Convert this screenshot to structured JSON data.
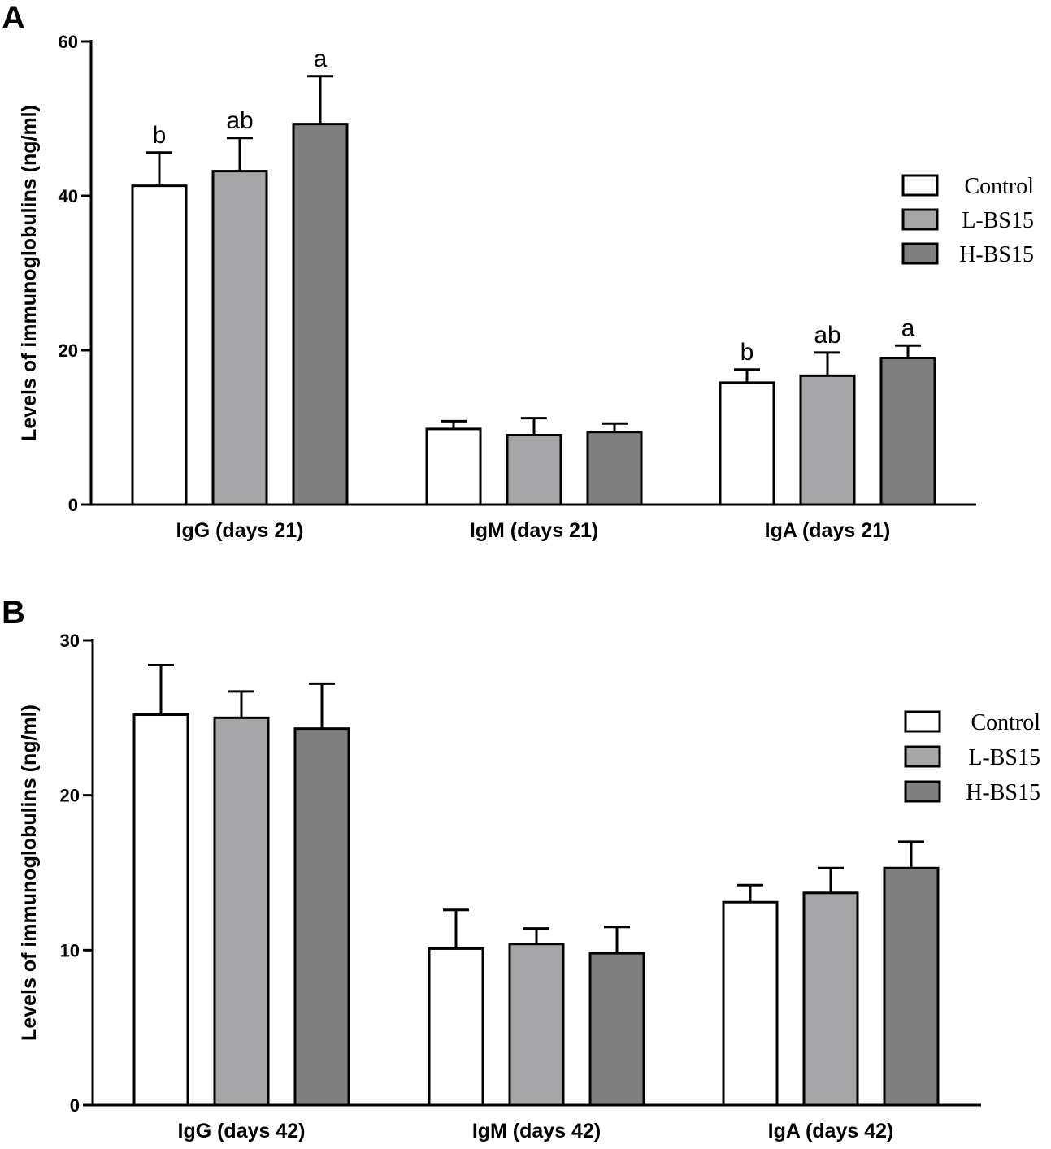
{
  "chart_data": [
    {
      "type": "bar",
      "panel": "A",
      "title": "",
      "xlabel": "",
      "ylabel": "Levels of immunoglobulins (ng/ml)",
      "ylim": [
        0,
        60
      ],
      "yticks": [
        0,
        20,
        40,
        60
      ],
      "categories": [
        "IgG (days 21)",
        "IgM (days 21)",
        "IgA (days 21)"
      ],
      "legend_position": "right",
      "series": [
        {
          "name": "Control",
          "color": "#ffffff",
          "values": [
            41.3,
            9.8,
            15.8
          ],
          "errors": [
            4.3,
            1.0,
            1.7
          ],
          "labels": [
            "b",
            "",
            "b"
          ]
        },
        {
          "name": "L-BS15",
          "color": "#a6a6a9",
          "values": [
            43.2,
            9.0,
            16.7
          ],
          "errors": [
            4.3,
            2.2,
            3.0
          ],
          "labels": [
            "ab",
            "",
            "ab"
          ]
        },
        {
          "name": "H-BS15",
          "color": "#7f7f7f",
          "values": [
            49.3,
            9.4,
            19.0
          ],
          "errors": [
            6.2,
            1.1,
            1.6
          ],
          "labels": [
            "a",
            "",
            "a"
          ]
        }
      ]
    },
    {
      "type": "bar",
      "panel": "B",
      "title": "",
      "xlabel": "",
      "ylabel": "Levels of immunoglobulins (ng/ml)",
      "ylim": [
        0,
        30
      ],
      "yticks": [
        0,
        10,
        20,
        30
      ],
      "categories": [
        "IgG (days 42)",
        "IgM (days 42)",
        "IgA (days 42)"
      ],
      "legend_position": "right",
      "series": [
        {
          "name": "Control",
          "color": "#ffffff",
          "values": [
            25.2,
            10.1,
            13.1
          ],
          "errors": [
            3.2,
            2.5,
            1.1
          ],
          "labels": [
            "",
            "",
            ""
          ]
        },
        {
          "name": "L-BS15",
          "color": "#a6a6a9",
          "values": [
            25.0,
            10.4,
            13.7
          ],
          "errors": [
            1.7,
            1.0,
            1.6
          ],
          "labels": [
            "",
            "",
            ""
          ]
        },
        {
          "name": "H-BS15",
          "color": "#7f7f7f",
          "values": [
            24.3,
            9.8,
            15.3
          ],
          "errors": [
            2.9,
            1.7,
            1.7
          ],
          "labels": [
            "",
            "",
            ""
          ]
        }
      ]
    }
  ]
}
